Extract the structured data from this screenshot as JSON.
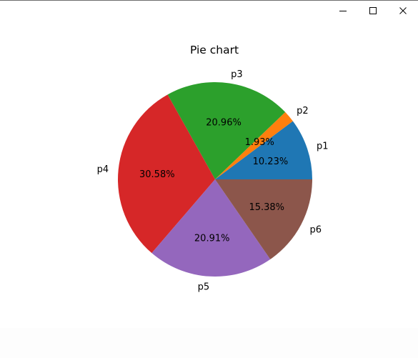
{
  "window": {
    "buttons": {
      "minimize": "minimize-icon",
      "maximize": "maximize-icon",
      "close": "close-icon"
    }
  },
  "chart_data": {
    "type": "pie",
    "title": "Pie chart",
    "labels": [
      "p1",
      "p2",
      "p3",
      "p4",
      "p5",
      "p6"
    ],
    "values": [
      10.23,
      1.93,
      20.96,
      30.58,
      20.91,
      15.38
    ],
    "percent_labels": [
      "10.23%",
      "1.93%",
      "20.96%",
      "30.58%",
      "20.91%",
      "15.38%"
    ],
    "colors": [
      "#1f77b4",
      "#ff7f0e",
      "#2ca02c",
      "#d62728",
      "#9467bd",
      "#8c564b"
    ],
    "start_angle_deg": 0,
    "direction": "counterclockwise"
  }
}
